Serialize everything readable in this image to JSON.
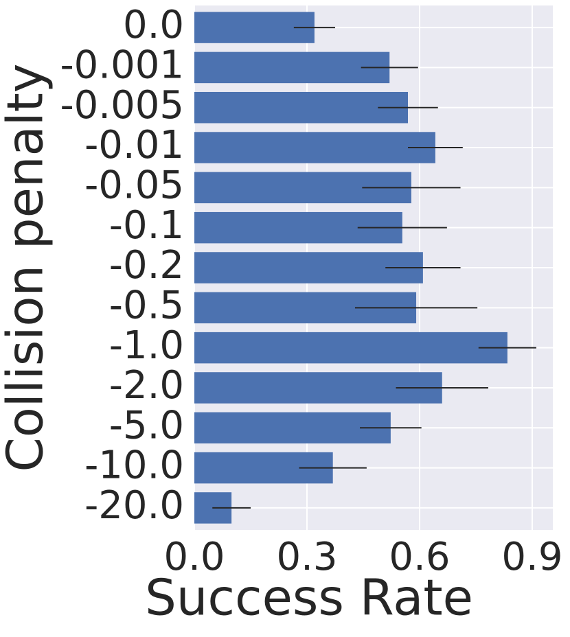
{
  "chart_data": {
    "type": "barh",
    "xlabel": "Success Rate",
    "ylabel": "Collision penalty",
    "categories": [
      "0.0",
      "-0.001",
      "-0.005",
      "-0.01",
      "-0.05",
      "-0.1",
      "-0.2",
      "-0.5",
      "-1.0",
      "-2.0",
      "-5.0",
      "-10.0",
      "-20.0"
    ],
    "values": [
      0.32,
      0.52,
      0.569,
      0.642,
      0.578,
      0.554,
      0.609,
      0.591,
      0.834,
      0.66,
      0.523,
      0.369,
      0.099
    ],
    "errors": [
      0.055,
      0.076,
      0.08,
      0.073,
      0.131,
      0.119,
      0.1,
      0.163,
      0.077,
      0.123,
      0.082,
      0.09,
      0.051
    ],
    "color": "#4c72b0",
    "xlim": [
      0,
      0.955
    ],
    "xticks": [
      {
        "value": 0,
        "label": "0.0"
      },
      0.3,
      0.6,
      0.9
    ],
    "grid": true
  }
}
